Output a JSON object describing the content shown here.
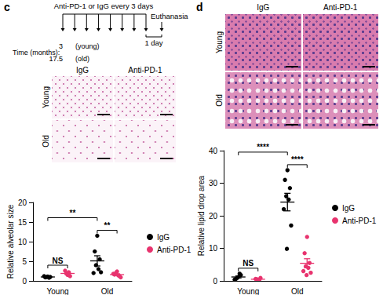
{
  "panel_labels": [
    "c",
    "d"
  ],
  "timeline": {
    "text": "Anti-PD-1 or IgG every 3 days",
    "doses": 8,
    "end_label": "Euthanasia",
    "interval_label": "1 day",
    "time_label": "Time (months):",
    "cohorts": [
      {
        "age": "3",
        "label": "(young)"
      },
      {
        "age": "17.5",
        "label": "(old)"
      }
    ]
  },
  "micrographs": [
    {
      "columns": [
        "IgG",
        "Anti-PD-1"
      ],
      "rows": [
        "Young",
        "Old"
      ]
    },
    {
      "columns": [
        "IgG",
        "Anti-PD-1"
      ],
      "rows": [
        "Young",
        "Old"
      ]
    }
  ],
  "chart_data": [
    {
      "type": "scatter",
      "y_label": "Relative alveolar size",
      "categories": [
        "Young",
        "Old"
      ],
      "ylim": [
        0,
        20
      ],
      "yticks": [
        0,
        5,
        10,
        15,
        20
      ],
      "legend": "right",
      "series": [
        {
          "name": "IgG",
          "color": "#000000",
          "values": [
            [
              1.1,
              0.9,
              1.0,
              1.0,
              0.8,
              1.2
            ],
            [
              11.5,
              7.5,
              5.5,
              4,
              3,
              2,
              2.2
            ]
          ],
          "mean": [
            1.0,
            5.1
          ],
          "error": [
            0.06,
            1.3
          ]
        },
        {
          "name": "Anti-PD-1",
          "color": "#e8336e",
          "values": [
            [
              1.5,
              2.6,
              1.2,
              1.9,
              2.2
            ],
            [
              2.4,
              1.6,
              1.2,
              2.0,
              1.4,
              1.8,
              0.9
            ]
          ],
          "mean": [
            1.9,
            1.6
          ],
          "error": [
            0.25,
            0.2
          ]
        }
      ],
      "annotations": [
        {
          "text": "NS",
          "from": {
            "category": "Young",
            "series": "IgG"
          },
          "to": {
            "category": "Young",
            "series": "Anti-PD-1"
          }
        },
        {
          "text": "**",
          "from": {
            "category": "Old",
            "series": "IgG"
          },
          "to": {
            "category": "Old",
            "series": "Anti-PD-1"
          }
        },
        {
          "text": "**",
          "from": {
            "category": "Young",
            "series": "IgG"
          },
          "to": {
            "category": "Old",
            "series": "IgG"
          }
        }
      ]
    },
    {
      "type": "scatter",
      "y_label": "Relative lipid drop area",
      "categories": [
        "Young",
        "Old"
      ],
      "ylim": [
        0,
        40
      ],
      "yticks": [
        0,
        10,
        20,
        30,
        40
      ],
      "legend": "right",
      "series": [
        {
          "name": "IgG",
          "color": "#000000",
          "values": [
            [
              1.2,
              0.6,
              1.8,
              0.9,
              2.2,
              0.4
            ],
            [
              34,
              31,
              28.5,
              26,
              25,
              22,
              17,
              10
            ]
          ],
          "mean": [
            1.2,
            24.2
          ],
          "error": [
            0.3,
            2.7
          ]
        },
        {
          "name": "Anti-PD-1",
          "color": "#e8336e",
          "values": [
            [
              0.3,
              0.6,
              0.9,
              0.5,
              0.2
            ],
            [
              13.5,
              8.5,
              5.5,
              4.5,
              4,
              3,
              2.5,
              2
            ]
          ],
          "mean": [
            0.5,
            5.4
          ],
          "error": [
            0.13,
            1.4
          ]
        }
      ],
      "annotations": [
        {
          "text": "NS",
          "from": {
            "category": "Young",
            "series": "IgG"
          },
          "to": {
            "category": "Young",
            "series": "Anti-PD-1"
          }
        },
        {
          "text": "****",
          "from": {
            "category": "Old",
            "series": "IgG"
          },
          "to": {
            "category": "Old",
            "series": "Anti-PD-1"
          }
        },
        {
          "text": "****",
          "from": {
            "category": "Young",
            "series": "IgG"
          },
          "to": {
            "category": "Old",
            "series": "IgG"
          }
        }
      ]
    }
  ]
}
